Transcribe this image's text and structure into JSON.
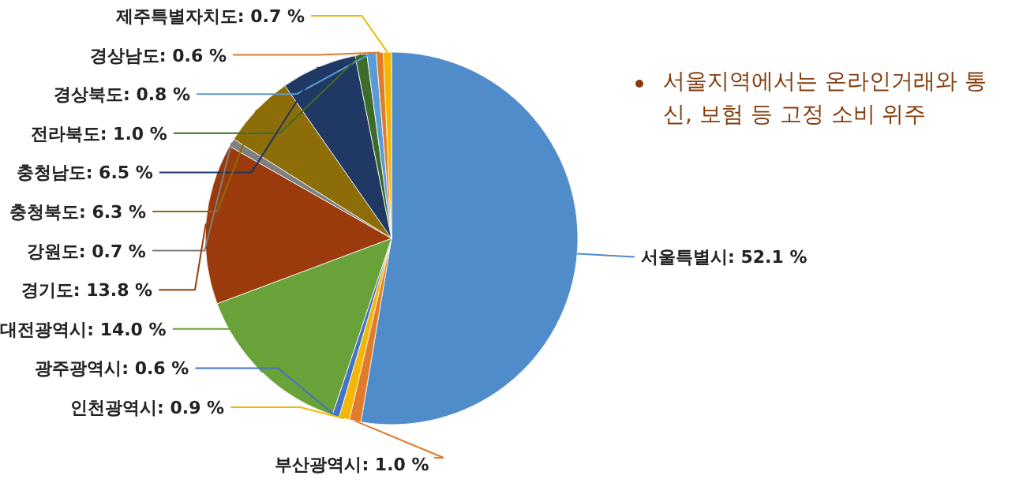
{
  "chart_data": {
    "type": "pie",
    "categories": [
      "서울특별시",
      "부산광역시",
      "인천광역시",
      "광주광역시",
      "대전광역시",
      "경기도",
      "강원도",
      "충청북도",
      "충청남도",
      "전라북도",
      "경상북도",
      "경상남도",
      "제주특별자치도"
    ],
    "values": [
      52.1,
      1.0,
      0.9,
      0.6,
      14.0,
      13.8,
      0.7,
      6.3,
      6.5,
      1.0,
      0.8,
      0.6,
      0.7
    ],
    "value_labels": [
      "52.1 %",
      "1.0 %",
      "0.9 %",
      "0.6 %",
      "14.0 %",
      "13.8 %",
      "0.7 %",
      "6.3 %",
      "6.5 %",
      "1.0 %",
      "0.8 %",
      "0.6 %",
      "0.7 %"
    ],
    "colors": [
      "#4f8cc9",
      "#e07b2a",
      "#f2b705",
      "#4472c4",
      "#6aa23a",
      "#9b3b0c",
      "#7f7f7f",
      "#8c6d08",
      "#1f3864",
      "#3d6b2a",
      "#5b9bd5",
      "#e07b2a",
      "#f2b705"
    ],
    "annotations": [
      "서울지역에서는 온라인거래와 통신, 보험 등 고정 소비 위주"
    ]
  }
}
